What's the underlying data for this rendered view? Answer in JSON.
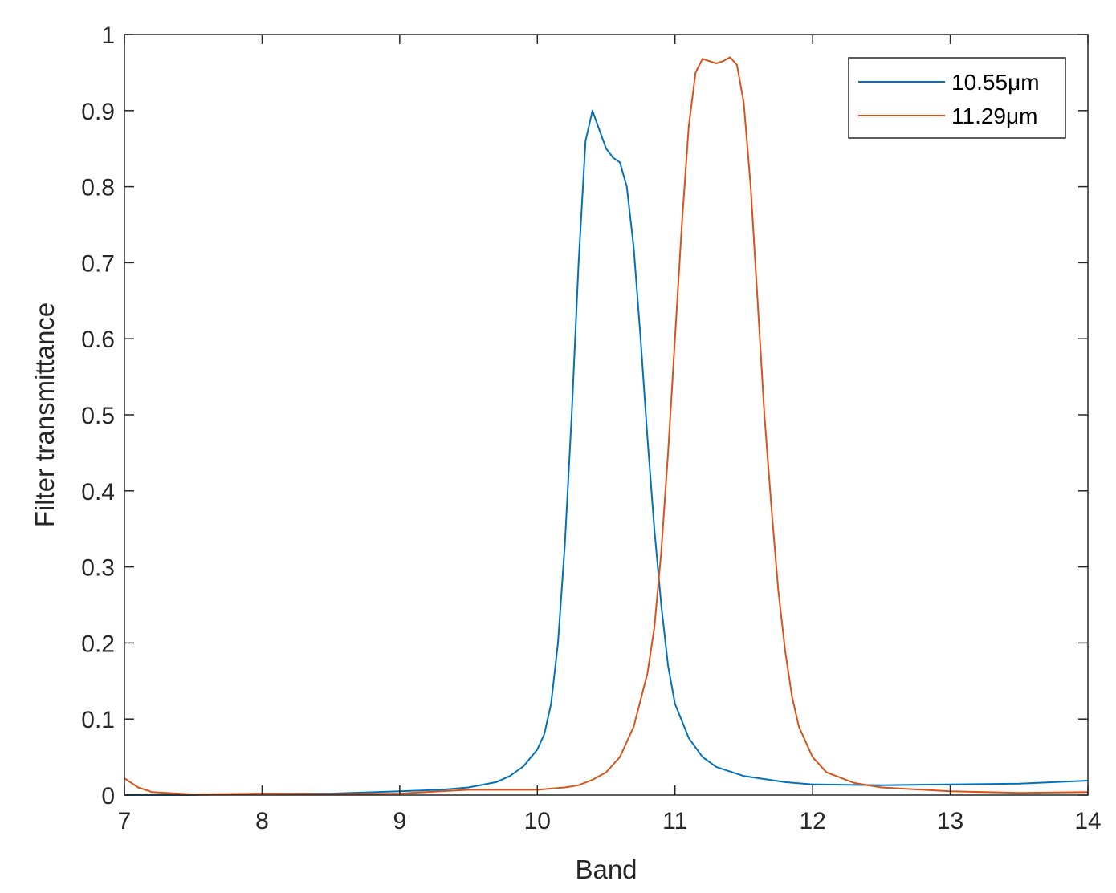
{
  "chart_data": {
    "type": "line",
    "title": "",
    "xlabel": "Band",
    "ylabel": "Filter transmittance",
    "xlim": [
      7,
      14
    ],
    "ylim": [
      0,
      1
    ],
    "x_ticks": [
      "7",
      "8",
      "9",
      "10",
      "11",
      "12",
      "13",
      "14"
    ],
    "y_ticks": [
      "0",
      "0.1",
      "0.2",
      "0.3",
      "0.4",
      "0.5",
      "0.6",
      "0.7",
      "0.8",
      "0.9",
      "1"
    ],
    "grid": false,
    "legend_position": "top-right",
    "series": [
      {
        "name": "10.55μm",
        "color": "#0072BD",
        "points": [
          [
            7.0,
            0.0
          ],
          [
            7.5,
            0.0
          ],
          [
            8.0,
            0.002
          ],
          [
            8.5,
            0.002
          ],
          [
            9.0,
            0.005
          ],
          [
            9.3,
            0.007
          ],
          [
            9.5,
            0.01
          ],
          [
            9.7,
            0.017
          ],
          [
            9.8,
            0.025
          ],
          [
            9.9,
            0.038
          ],
          [
            10.0,
            0.06
          ],
          [
            10.05,
            0.08
          ],
          [
            10.1,
            0.12
          ],
          [
            10.15,
            0.2
          ],
          [
            10.2,
            0.33
          ],
          [
            10.25,
            0.5
          ],
          [
            10.3,
            0.7
          ],
          [
            10.35,
            0.86
          ],
          [
            10.4,
            0.9
          ],
          [
            10.45,
            0.875
          ],
          [
            10.5,
            0.85
          ],
          [
            10.55,
            0.838
          ],
          [
            10.6,
            0.832
          ],
          [
            10.65,
            0.8
          ],
          [
            10.7,
            0.72
          ],
          [
            10.75,
            0.6
          ],
          [
            10.8,
            0.47
          ],
          [
            10.85,
            0.35
          ],
          [
            10.9,
            0.25
          ],
          [
            10.95,
            0.17
          ],
          [
            11.0,
            0.12
          ],
          [
            11.1,
            0.075
          ],
          [
            11.2,
            0.05
          ],
          [
            11.3,
            0.037
          ],
          [
            11.5,
            0.025
          ],
          [
            11.8,
            0.017
          ],
          [
            12.0,
            0.014
          ],
          [
            12.5,
            0.013
          ],
          [
            13.0,
            0.014
          ],
          [
            13.5,
            0.015
          ],
          [
            14.0,
            0.019
          ]
        ]
      },
      {
        "name": "11.29μm",
        "color": "#D95319",
        "points": [
          [
            7.0,
            0.022
          ],
          [
            7.1,
            0.01
          ],
          [
            7.2,
            0.004
          ],
          [
            7.5,
            0.001
          ],
          [
            8.0,
            0.002
          ],
          [
            8.5,
            0.001
          ],
          [
            9.0,
            0.002
          ],
          [
            9.5,
            0.007
          ],
          [
            10.0,
            0.007
          ],
          [
            10.2,
            0.01
          ],
          [
            10.3,
            0.013
          ],
          [
            10.4,
            0.02
          ],
          [
            10.5,
            0.03
          ],
          [
            10.6,
            0.05
          ],
          [
            10.7,
            0.09
          ],
          [
            10.8,
            0.16
          ],
          [
            10.85,
            0.22
          ],
          [
            10.9,
            0.32
          ],
          [
            10.95,
            0.45
          ],
          [
            11.0,
            0.6
          ],
          [
            11.05,
            0.75
          ],
          [
            11.1,
            0.88
          ],
          [
            11.15,
            0.95
          ],
          [
            11.2,
            0.968
          ],
          [
            11.25,
            0.965
          ],
          [
            11.3,
            0.962
          ],
          [
            11.35,
            0.965
          ],
          [
            11.4,
            0.97
          ],
          [
            11.45,
            0.96
          ],
          [
            11.5,
            0.91
          ],
          [
            11.55,
            0.8
          ],
          [
            11.6,
            0.65
          ],
          [
            11.65,
            0.5
          ],
          [
            11.7,
            0.38
          ],
          [
            11.75,
            0.27
          ],
          [
            11.8,
            0.19
          ],
          [
            11.85,
            0.13
          ],
          [
            11.9,
            0.09
          ],
          [
            12.0,
            0.05
          ],
          [
            12.1,
            0.03
          ],
          [
            12.3,
            0.016
          ],
          [
            12.5,
            0.01
          ],
          [
            13.0,
            0.005
          ],
          [
            13.5,
            0.003
          ],
          [
            14.0,
            0.004
          ]
        ]
      }
    ]
  }
}
